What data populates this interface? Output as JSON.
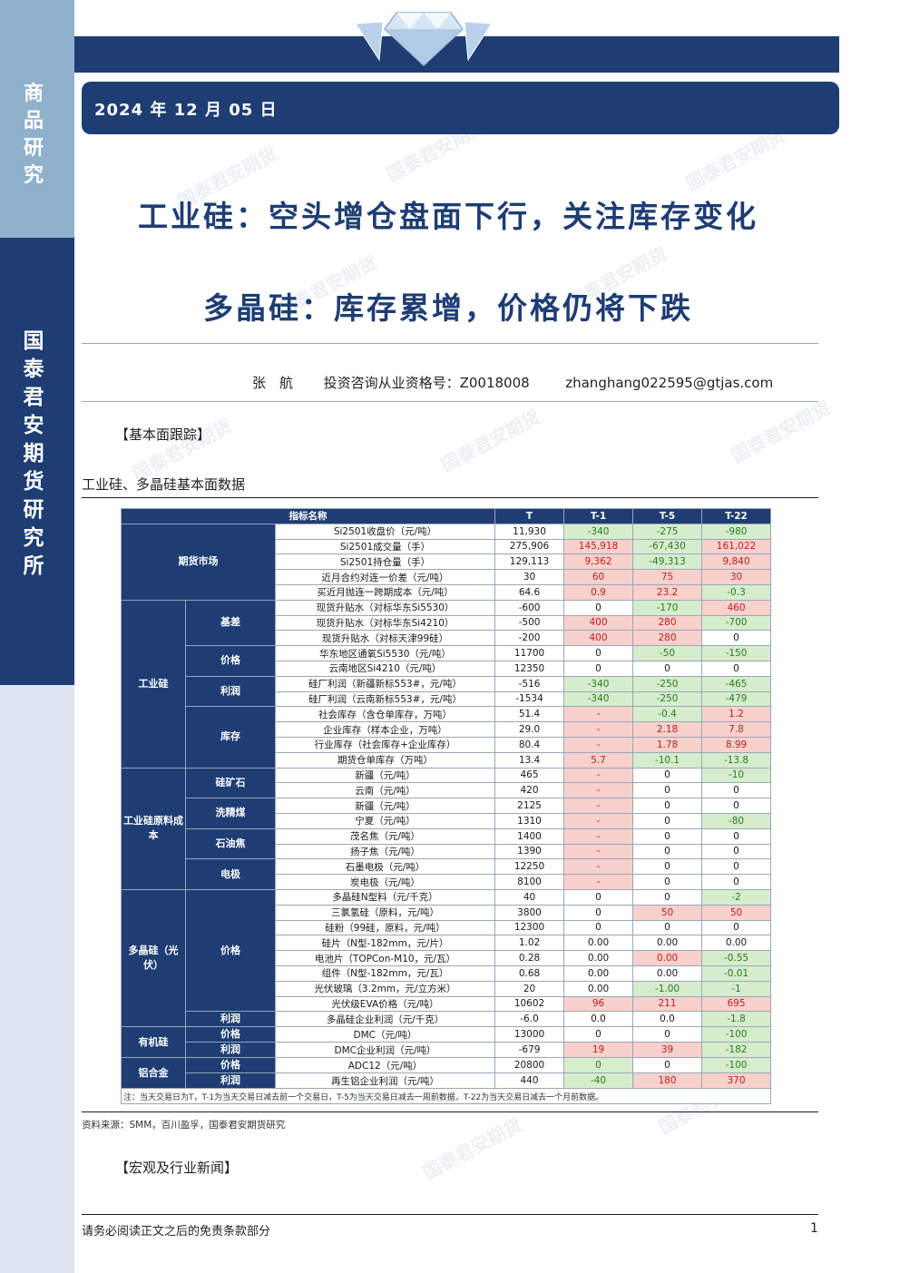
{
  "sidebar": {
    "top_label": "商品研究",
    "mid_label": "国泰君安期货研究所"
  },
  "header": {
    "date": "2024 年 12 月 05 日"
  },
  "titles": {
    "main": "工业硅：空头增仓盘面下行，关注库存变化",
    "sub": "多晶硅：库存累增，价格仍将下跌"
  },
  "author": {
    "name": "张　航",
    "license": "投资咨询从业资格号：Z0018008",
    "email": "zhanghang022595@gtjas.com"
  },
  "sections": {
    "fundamentals": "【基本面跟踪】",
    "news": "【宏观及行业新闻】"
  },
  "table": {
    "title": "工业硅、多晶硅基本面数据",
    "headers": [
      "指标名称",
      "T",
      "T-1",
      "T-5",
      "T-22"
    ],
    "groups": {
      "futures": "期货市场",
      "basis": "基差",
      "price": "价格",
      "profit": "利润",
      "inventory": "库存",
      "industrial_si": "工业硅",
      "cost": "工业硅原料成本",
      "quartz": "硅矿石",
      "coal": "洗精煤",
      "coke": "石油焦",
      "electrode": "电极",
      "poly": "多晶硅（光伏）",
      "poly_price": "价格",
      "poly_profit": "利润",
      "organic": "有机硅",
      "org_price": "价格",
      "org_profit": "利润",
      "alloy": "铝合金",
      "al_price": "价格",
      "al_profit": "利润"
    },
    "rows": [
      {
        "name": "Si2501收盘价（元/吨）",
        "t": "11,930",
        "t1": "-340",
        "t5": "-275",
        "t22": "-980"
      },
      {
        "name": "Si2501成交量（手）",
        "t": "275,906",
        "t1": "145,918",
        "t5": "-67,430",
        "t22": "161,022"
      },
      {
        "name": "Si2501持仓量（手）",
        "t": "129,113",
        "t1": "9,362",
        "t5": "-49,313",
        "t22": "9,840"
      },
      {
        "name": "近月合约对连一价差（元/吨）",
        "t": "30",
        "t1": "60",
        "t5": "75",
        "t22": "30"
      },
      {
        "name": "买近月抛连一跨期成本（元/吨）",
        "t": "64.6",
        "t1": "0.9",
        "t5": "23.2",
        "t22": "-0.3"
      },
      {
        "name": "现货升贴水（对标华东Si5530）",
        "t": "-600",
        "t1": "0",
        "t5": "-170",
        "t22": "460"
      },
      {
        "name": "现货升贴水（对标华东Si4210）",
        "t": "-500",
        "t1": "400",
        "t5": "280",
        "t22": "-700"
      },
      {
        "name": "现货升贴水（对标天津99硅）",
        "t": "-200",
        "t1": "400",
        "t5": "280",
        "t22": "0"
      },
      {
        "name": "华东地区通氧Si5530（元/吨）",
        "t": "11700",
        "t1": "0",
        "t5": "-50",
        "t22": "-150"
      },
      {
        "name": "云南地区Si4210（元/吨）",
        "t": "12350",
        "t1": "0",
        "t5": "0",
        "t22": "0"
      },
      {
        "name": "硅厂利润（新疆新标553#，元/吨）",
        "t": "-516",
        "t1": "-340",
        "t5": "-250",
        "t22": "-465"
      },
      {
        "name": "硅厂利润（云南新标553#，元/吨）",
        "t": "-1534",
        "t1": "-340",
        "t5": "-250",
        "t22": "-479"
      },
      {
        "name": "社会库存（含仓单库存，万吨）",
        "t": "51.4",
        "t1": "-",
        "t5": "-0.4",
        "t22": "1.2"
      },
      {
        "name": "企业库存（样本企业，万吨）",
        "t": "29.0",
        "t1": "-",
        "t5": "2.18",
        "t22": "7.8"
      },
      {
        "name": "行业库存（社会库存+企业库存）",
        "t": "80.4",
        "t1": "-",
        "t5": "1.78",
        "t22": "8.99"
      },
      {
        "name": "期货仓单库存（万吨）",
        "t": "13.4",
        "t1": "5.7",
        "t5": "-10.1",
        "t22": "-13.8"
      },
      {
        "name": "新疆（元/吨）",
        "t": "465",
        "t1": "-",
        "t5": "0",
        "t22": "-10"
      },
      {
        "name": "云南（元/吨）",
        "t": "420",
        "t1": "-",
        "t5": "0",
        "t22": "0"
      },
      {
        "name": "新疆（元/吨）",
        "t": "2125",
        "t1": "-",
        "t5": "0",
        "t22": "0"
      },
      {
        "name": "宁夏（元/吨）",
        "t": "1310",
        "t1": "-",
        "t5": "0",
        "t22": "-80"
      },
      {
        "name": "茂名焦（元/吨）",
        "t": "1400",
        "t1": "-",
        "t5": "0",
        "t22": "0"
      },
      {
        "name": "扬子焦（元/吨）",
        "t": "1390",
        "t1": "-",
        "t5": "0",
        "t22": "0"
      },
      {
        "name": "石墨电极（元/吨）",
        "t": "12250",
        "t1": "-",
        "t5": "0",
        "t22": "0"
      },
      {
        "name": "炭电极（元/吨）",
        "t": "8100",
        "t1": "-",
        "t5": "0",
        "t22": "0"
      },
      {
        "name": "多晶硅N型料（元/千克）",
        "t": "40",
        "t1": "0",
        "t5": "0",
        "t22": "-2"
      },
      {
        "name": "三氯氢硅（原料，元/吨）",
        "t": "3800",
        "t1": "0",
        "t5": "50",
        "t22": "50"
      },
      {
        "name": "硅粉（99硅，原料，元/吨）",
        "t": "12300",
        "t1": "0",
        "t5": "0",
        "t22": "0"
      },
      {
        "name": "硅片（N型-182mm，元/片）",
        "t": "1.02",
        "t1": "0.00",
        "t5": "0.00",
        "t22": "0.00"
      },
      {
        "name": "电池片（TOPCon-M10，元/瓦）",
        "t": "0.28",
        "t1": "0.00",
        "t5": "0.00",
        "t22": "-0.55"
      },
      {
        "name": "组件（N型-182mm，元/瓦）",
        "t": "0.68",
        "t1": "0.00",
        "t5": "0.00",
        "t22": "-0.01"
      },
      {
        "name": "光伏玻璃（3.2mm，元/立方米）",
        "t": "20",
        "t1": "0.00",
        "t5": "-1.00",
        "t22": "-1"
      },
      {
        "name": "光伏级EVA价格（元/吨）",
        "t": "10602",
        "t1": "96",
        "t5": "211",
        "t22": "695"
      },
      {
        "name": "多晶硅企业利润（元/千克）",
        "t": "-6.0",
        "t1": "0.0",
        "t5": "0.0",
        "t22": "-1.8"
      },
      {
        "name": "DMC（元/吨）",
        "t": "13000",
        "t1": "0",
        "t5": "0",
        "t22": "-100"
      },
      {
        "name": "DMC企业利润（元/吨）",
        "t": "-679",
        "t1": "19",
        "t5": "39",
        "t22": "-182"
      },
      {
        "name": "ADC12（元/吨）",
        "t": "20800",
        "t1": "0",
        "t5": "0",
        "t22": "-100"
      },
      {
        "name": "再生铝企业利润（元/吨）",
        "t": "440",
        "t1": "-40",
        "t5": "180",
        "t22": "370"
      }
    ],
    "note": "注：当天交易日为T，T-1为当天交易日减去前一个交易日，T-5为当天交易日减去一周前数据，T-22为当天交易日减去一个月前数据。"
  },
  "source": "资料来源：SMM，百川盈孚，国泰君安期货研究",
  "footer": {
    "disclaimer": "请务必阅读正文之后的免责条款部分",
    "page": "1"
  },
  "watermark": "国泰君安期货",
  "colors": {
    "navy": "#1d3d73",
    "red_bg": "#f8d0cc",
    "green_bg": "#d6edcd"
  }
}
